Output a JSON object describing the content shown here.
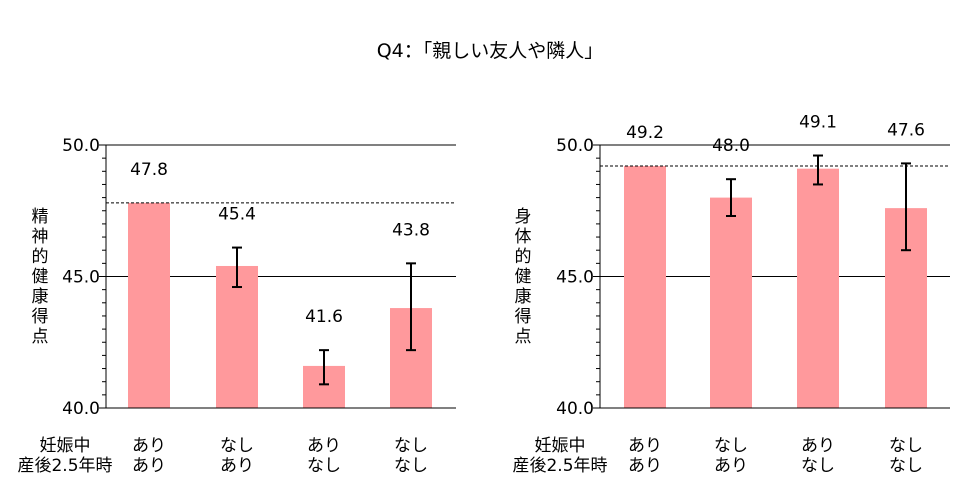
{
  "title": "Q4：「親しい友人や隣人」",
  "chart_data": [
    {
      "type": "bar",
      "ylabel": "精神的健康得点",
      "ylim": [
        40.0,
        50.0
      ],
      "yticks": [
        "50.0",
        "45.0",
        "40.0"
      ],
      "category_header": [
        "妊娠中",
        "産後2.5年時"
      ],
      "categories": [
        [
          "あり",
          "あり"
        ],
        [
          "なし",
          "あり"
        ],
        [
          "あり",
          "なし"
        ],
        [
          "なし",
          "なし"
        ]
      ],
      "values": [
        47.8,
        45.4,
        41.6,
        43.8
      ],
      "value_labels": [
        "47.8",
        "45.4",
        "41.6",
        "43.8"
      ],
      "error_low": [
        null,
        44.6,
        40.9,
        42.2
      ],
      "error_high": [
        null,
        46.1,
        42.2,
        45.5
      ],
      "reference_line": 47.8,
      "bar_color": "#ff999c"
    },
    {
      "type": "bar",
      "ylabel": "身体的健康得点",
      "ylim": [
        40.0,
        50.0
      ],
      "yticks": [
        "50.0",
        "45.0",
        "40.0"
      ],
      "category_header": [
        "妊娠中",
        "産後2.5年時"
      ],
      "categories": [
        [
          "あり",
          "あり"
        ],
        [
          "なし",
          "あり"
        ],
        [
          "あり",
          "なし"
        ],
        [
          "なし",
          "なし"
        ]
      ],
      "values": [
        49.2,
        48.0,
        49.1,
        47.6
      ],
      "value_labels": [
        "49.2",
        "48.0",
        "49.1",
        "47.6"
      ],
      "error_low": [
        null,
        47.3,
        48.5,
        46.0
      ],
      "error_high": [
        null,
        48.7,
        49.6,
        49.3
      ],
      "reference_line": 49.2,
      "bar_color": "#ff999c"
    }
  ]
}
